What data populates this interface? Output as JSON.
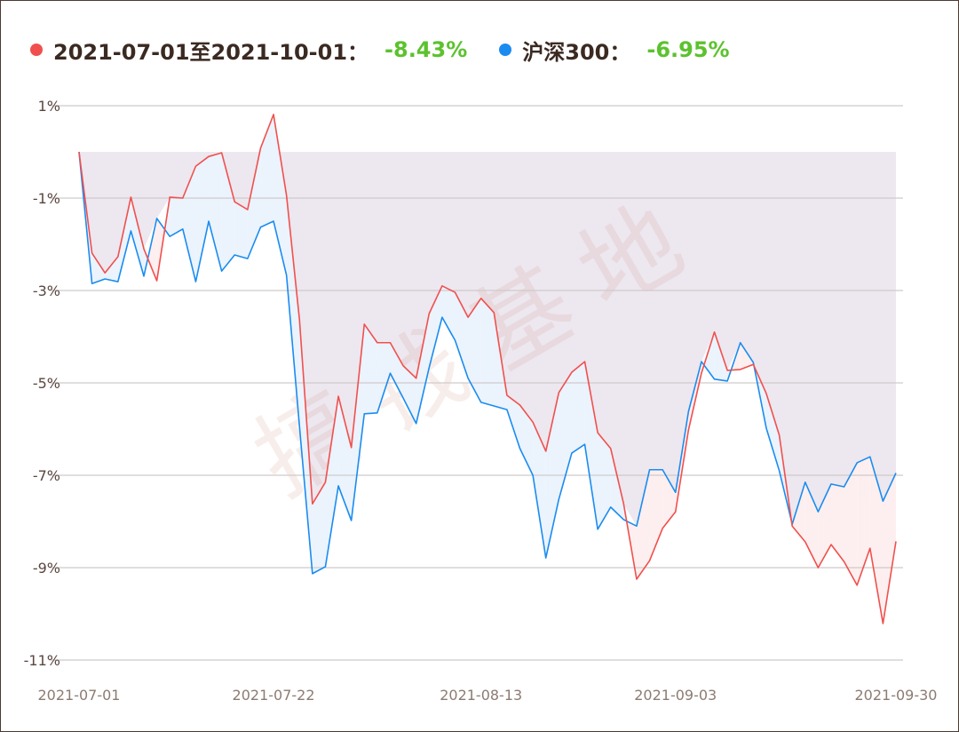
{
  "legend": [
    {
      "label": "2021-07-01至2021-10-01：",
      "value": "-8.43%",
      "color": "#f0504d"
    },
    {
      "label": "沪深300：",
      "value": "-6.95%",
      "color": "#1a8cf0"
    }
  ],
  "watermark": "搞钱基地",
  "chart_data": {
    "type": "line",
    "ylim": [
      -11,
      1
    ],
    "yticks": [
      1,
      -1,
      -3,
      -5,
      -7,
      -9,
      -11
    ],
    "ytick_labels": [
      "1%",
      "-1%",
      "-3%",
      "-5%",
      "-7%",
      "-9%",
      "-11%"
    ],
    "xtick_labels": [
      "2021-07-01",
      "2021-07-22",
      "2021-08-13",
      "2021-09-03",
      "2021-09-30"
    ],
    "grid": true,
    "legend_position": "top-left",
    "x": [
      "2021-07-01",
      "2021-07-02",
      "2021-07-05",
      "2021-07-06",
      "2021-07-07",
      "2021-07-08",
      "2021-07-09",
      "2021-07-12",
      "2021-07-13",
      "2021-07-14",
      "2021-07-15",
      "2021-07-16",
      "2021-07-19",
      "2021-07-20",
      "2021-07-21",
      "2021-07-22",
      "2021-07-23",
      "2021-07-26",
      "2021-07-27",
      "2021-07-28",
      "2021-07-29",
      "2021-07-30",
      "2021-08-02",
      "2021-08-03",
      "2021-08-04",
      "2021-08-05",
      "2021-08-06",
      "2021-08-09",
      "2021-08-10",
      "2021-08-11",
      "2021-08-12",
      "2021-08-13",
      "2021-08-16",
      "2021-08-17",
      "2021-08-18",
      "2021-08-19",
      "2021-08-20",
      "2021-08-23",
      "2021-08-24",
      "2021-08-25",
      "2021-08-26",
      "2021-08-27",
      "2021-08-30",
      "2021-08-31",
      "2021-09-01",
      "2021-09-02",
      "2021-09-03",
      "2021-09-06",
      "2021-09-07",
      "2021-09-08",
      "2021-09-09",
      "2021-09-10",
      "2021-09-13",
      "2021-09-14",
      "2021-09-15",
      "2021-09-16",
      "2021-09-17",
      "2021-09-22",
      "2021-09-23",
      "2021-09-24",
      "2021-09-27",
      "2021-09-28",
      "2021-09-29",
      "2021-09-30"
    ],
    "series": [
      {
        "name": "2021-07-01至2021-10-01",
        "color": "#f0504d",
        "values": [
          0,
          -2.19,
          -2.62,
          -2.27,
          -0.98,
          -2.1,
          -2.79,
          -0.98,
          -1.0,
          -0.31,
          -0.1,
          -0.02,
          -1.08,
          -1.25,
          0.08,
          0.81,
          -0.94,
          -3.63,
          -7.62,
          -7.15,
          -5.29,
          -6.4,
          -3.73,
          -4.13,
          -4.13,
          -4.63,
          -4.9,
          -3.5,
          -2.9,
          -3.04,
          -3.58,
          -3.17,
          -3.48,
          -5.27,
          -5.48,
          -5.85,
          -6.48,
          -5.21,
          -4.77,
          -4.54,
          -6.08,
          -6.42,
          -7.62,
          -9.25,
          -8.85,
          -8.15,
          -7.79,
          -6.02,
          -4.79,
          -3.9,
          -4.73,
          -4.71,
          -4.6,
          -5.23,
          -6.13,
          -8.1,
          -8.44,
          -9.0,
          -8.5,
          -8.87,
          -9.38,
          -8.58,
          -10.21,
          -8.43
        ]
      },
      {
        "name": "沪深300",
        "color": "#1a8cf0",
        "values": [
          0,
          -2.85,
          -2.75,
          -2.81,
          -1.71,
          -2.69,
          -1.44,
          -1.83,
          -1.67,
          -2.81,
          -1.5,
          -2.58,
          -2.23,
          -2.31,
          -1.63,
          -1.5,
          -2.67,
          -5.94,
          -9.13,
          -8.98,
          -7.23,
          -7.98,
          -5.67,
          -5.65,
          -4.79,
          -5.33,
          -5.88,
          -4.67,
          -3.58,
          -4.08,
          -4.9,
          -5.42,
          -5.5,
          -5.58,
          -6.42,
          -7.0,
          -8.79,
          -7.52,
          -6.52,
          -6.33,
          -8.17,
          -7.69,
          -7.96,
          -8.1,
          -6.88,
          -6.88,
          -7.37,
          -5.62,
          -4.54,
          -4.92,
          -4.96,
          -4.13,
          -4.56,
          -5.98,
          -6.9,
          -8.06,
          -7.15,
          -7.79,
          -7.19,
          -7.25,
          -6.73,
          -6.6,
          -7.56,
          -6.95
        ]
      }
    ]
  }
}
